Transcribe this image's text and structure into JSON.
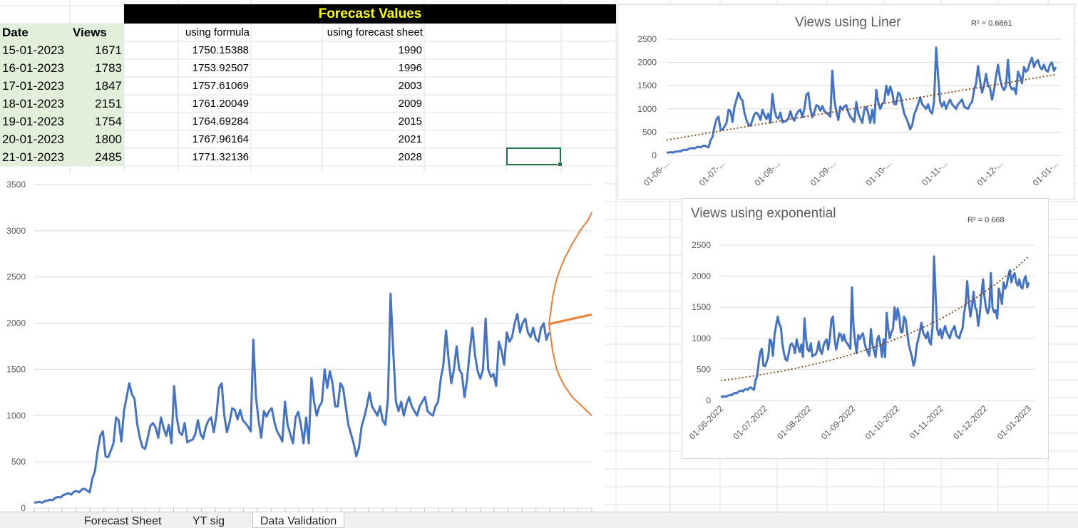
{
  "sheet": {
    "title": "Forecast Values",
    "headers": {
      "date": "Date",
      "views": "Views",
      "formula": "using formula",
      "forecast_sheet": "using forecast sheet"
    },
    "rows": [
      {
        "date": "15-01-2023",
        "views": "1671",
        "formula": "1750.15388",
        "forecast": "1990"
      },
      {
        "date": "16-01-2023",
        "views": "1783",
        "formula": "1753.92507",
        "forecast": "1996"
      },
      {
        "date": "17-01-2023",
        "views": "1847",
        "formula": "1757.61069",
        "forecast": "2003"
      },
      {
        "date": "18-01-2023",
        "views": "2151",
        "formula": "1761.20049",
        "forecast": "2009"
      },
      {
        "date": "19-01-2023",
        "views": "1754",
        "formula": "1764.69284",
        "forecast": "2015"
      },
      {
        "date": "20-01-2023",
        "views": "1800",
        "formula": "1767.96164",
        "forecast": "2021"
      },
      {
        "date": "21-01-2023",
        "views": "2485",
        "formula": "1771.32136",
        "forecast": "2028"
      }
    ]
  },
  "tabs": [
    "Forecast Sheet",
    "YT sig",
    "Data Validation"
  ],
  "colors": {
    "series": "#4472c4",
    "forecast": "#ed7d31",
    "trend": "#843c0c",
    "grid": "#d9d9d9",
    "title_bar": "#000000",
    "title_text": "#ffff00",
    "selection": "#217346"
  },
  "chart_data": [
    {
      "type": "line",
      "title": "",
      "ylim": [
        0,
        3500
      ],
      "yticks": [
        0,
        500,
        1000,
        1500,
        2000,
        2500,
        3000,
        3500
      ],
      "x_tick_count": 40,
      "series": [
        {
          "values": [
            60,
            62,
            68,
            58,
            75,
            80,
            90,
            85,
            110,
            120,
            115,
            140,
            150,
            160,
            145,
            175,
            185,
            170,
            200,
            210,
            190,
            170,
            320,
            400,
            620,
            780,
            830,
            560,
            550,
            620,
            700,
            980,
            950,
            720,
            1050,
            1200,
            1350,
            1230,
            1180,
            910,
            760,
            660,
            640,
            760,
            890,
            920,
            870,
            760,
            980,
            870,
            780,
            900,
            700,
            1320,
            980,
            820,
            790,
            920,
            710,
            730,
            740,
            800,
            950,
            800,
            750,
            880,
            950,
            980,
            820,
            1000,
            1300,
            1350,
            1000,
            820,
            930,
            1080,
            1060,
            960,
            1060,
            950,
            920,
            880,
            830,
            1820,
            1200,
            950,
            760,
            1050,
            990,
            1050,
            1080,
            930,
            830,
            780,
            720,
            1150,
            900,
            800,
            700,
            980,
            1040,
            900,
            700,
            980,
            700,
            1410,
            1150,
            1000,
            1100,
            1150,
            1500,
            1300,
            1480,
            1350,
            1100,
            1100,
            1350,
            1300,
            1100,
            900,
            800,
            700,
            560,
            650,
            880,
            980,
            1100,
            1250,
            1100,
            1050,
            1000,
            1100,
            950,
            900,
            1180,
            2320,
            1700,
            1150,
            1050,
            1150,
            1000,
            1120,
            1200,
            1100,
            1050,
            1000,
            1100,
            1150,
            1200,
            1050,
            1020,
            1000,
            1100,
            1150,
            1400,
            1550,
            1920,
            1600,
            1350,
            1500,
            1750,
            1500,
            1450,
            1200,
            1400,
            1700,
            1950,
            1650,
            1480,
            1400,
            1500,
            2050,
            1500,
            1420,
            1450,
            1320,
            1800,
            1700,
            1550,
            1900,
            1800,
            1850,
            2000,
            2100,
            1900,
            2000,
            2050,
            1900,
            1850,
            1950,
            1830,
            1800,
            1950,
            2000,
            1820,
            1900
          ]
        },
        {
          "values": [
            1990,
            1996,
            2003,
            2009,
            2015,
            2021,
            2028,
            2034,
            2040,
            2046,
            2052,
            2058,
            2064,
            2070,
            2076,
            2082,
            2088,
            2094
          ]
        },
        {
          "values": [
            1990,
            2300,
            2480,
            2600,
            2700,
            2780,
            2860,
            2930,
            3000,
            3060,
            3110,
            3200
          ]
        },
        {
          "values": [
            1990,
            1680,
            1500,
            1400,
            1320,
            1260,
            1200,
            1160,
            1120,
            1080,
            1040,
            1000
          ]
        }
      ]
    },
    {
      "type": "line",
      "title": "Views using Liner",
      "r2": "R² = 0.6861",
      "ylim": [
        0,
        2500
      ],
      "yticks": [
        0,
        500,
        1000,
        1500,
        2000,
        2500
      ],
      "categories": [
        "01-06-...",
        "01-07-...",
        "01-08-...",
        "01-09-...",
        "01-10-...",
        "01-11-...",
        "01-12-...",
        "01-01-..."
      ],
      "trendline": {
        "type": "linear",
        "start": 330,
        "end": 1740
      }
    },
    {
      "type": "line",
      "title": "Views using exponential",
      "r2": "R² = 0.668",
      "ylim": [
        0,
        2500
      ],
      "yticks": [
        0,
        500,
        1000,
        1500,
        2000,
        2500
      ],
      "categories": [
        "01-06-2022",
        "01-07-2022",
        "01-08-2022",
        "01-09-2022",
        "01-10-2022",
        "01-11-2022",
        "01-12-2022",
        "01-01-2023"
      ],
      "trendline": {
        "type": "exponential",
        "start": 320,
        "end": 2320
      }
    }
  ]
}
